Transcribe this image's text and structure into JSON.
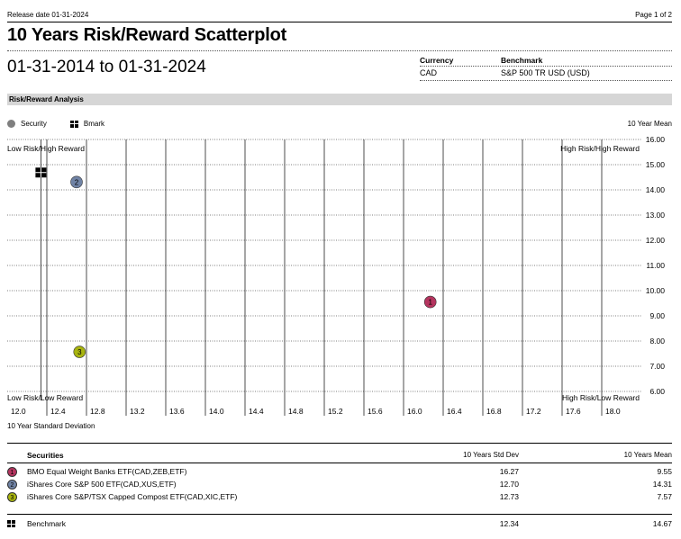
{
  "header": {
    "release_date": "Release date 01-31-2024",
    "page": "Page 1 of 2",
    "title": "10 Years Risk/Reward Scatterplot",
    "date_range": "01-31-2014 to 01-31-2024",
    "currency_label": "Currency",
    "currency_value": "CAD",
    "benchmark_label": "Benchmark",
    "benchmark_value": "S&P 500 TR USD (USD)"
  },
  "section_title": "Risk/Reward Analysis",
  "legend": {
    "security": "Security",
    "benchmark": "Bmark"
  },
  "colors": {
    "security_1": "#b5345f",
    "security_2": "#7083a5",
    "security_3": "#a8b40f",
    "legend_dot": "#7f7f7f",
    "section_bar": "#d6d6d6"
  },
  "chart_data": {
    "type": "scatter",
    "ylabel": "10 Year Mean",
    "xlabel": "10 Year Standard Deviation",
    "xlim": [
      12.0,
      18.0
    ],
    "ylim": [
      6.0,
      16.0
    ],
    "x_ticks": [
      "12.0",
      "12.4",
      "12.8",
      "13.2",
      "13.6",
      "14.0",
      "14.4",
      "14.8",
      "15.2",
      "15.6",
      "16.0",
      "16.4",
      "16.8",
      "17.2",
      "17.6",
      "18.0"
    ],
    "y_ticks": [
      "16.00",
      "15.00",
      "14.00",
      "13.00",
      "12.00",
      "11.00",
      "10.00",
      "9.00",
      "8.00",
      "7.00",
      "6.00"
    ],
    "quadrants": {
      "top_left": "Low Risk/High Reward",
      "top_right": "High Risk/High Reward",
      "bottom_left": "Low Risk/Low Reward",
      "bottom_right": "High Risk/Low Reward"
    },
    "points": [
      {
        "label": "1",
        "x": 16.27,
        "y": 9.55,
        "kind": "security"
      },
      {
        "label": "2",
        "x": 12.7,
        "y": 14.31,
        "kind": "security"
      },
      {
        "label": "3",
        "x": 12.73,
        "y": 7.57,
        "kind": "security"
      },
      {
        "label": "",
        "x": 12.34,
        "y": 14.67,
        "kind": "benchmark"
      }
    ],
    "grid": true
  },
  "table": {
    "col_securities": "Securities",
    "col_std": "10 Years Std Dev",
    "col_mean": "10 Years Mean",
    "rows": [
      {
        "num": "1",
        "name": "BMO Equal Weight Banks ETF(CAD,ZEB,ETF)",
        "std": "16.27",
        "mean": "9.55"
      },
      {
        "num": "2",
        "name": "iShares Core S&P 500 ETF(CAD,XUS,ETF)",
        "std": "12.70",
        "mean": "14.31"
      },
      {
        "num": "3",
        "name": "iShares Core S&P/TSX Capped Compost ETF(CAD,XIC,ETF)",
        "std": "12.73",
        "mean": "7.57"
      }
    ],
    "benchmark_row": {
      "name": "Benchmark",
      "std": "12.34",
      "mean": "14.67"
    }
  }
}
